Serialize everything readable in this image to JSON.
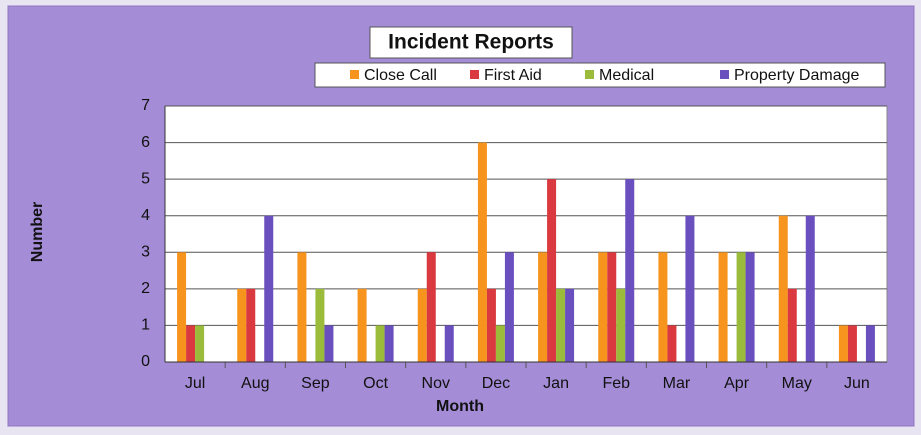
{
  "chart_data": {
    "type": "bar",
    "title": "Incident Reports",
    "x_label": "Month",
    "y_label": "Number",
    "categories": [
      "Jul",
      "Aug",
      "Sep",
      "Oct",
      "Nov",
      "Dec",
      "Jan",
      "Feb",
      "Mar",
      "Apr",
      "May",
      "Jun"
    ],
    "series": [
      {
        "name": "Close Call",
        "color": "#f7941d",
        "values": [
          3,
          2,
          3,
          2,
          2,
          6,
          3,
          3,
          3,
          3,
          4,
          1
        ]
      },
      {
        "name": "First Aid",
        "color": "#d9393f",
        "values": [
          1,
          2,
          0,
          0,
          3,
          2,
          5,
          3,
          1,
          0,
          2,
          1
        ]
      },
      {
        "name": "Medical",
        "color": "#9bbb3b",
        "values": [
          1,
          0,
          2,
          1,
          0,
          1,
          2,
          2,
          0,
          3,
          0,
          0
        ]
      },
      {
        "name": "Property Damage",
        "color": "#6a4fbf",
        "values": [
          0,
          4,
          1,
          1,
          1,
          3,
          2,
          5,
          4,
          3,
          4,
          1
        ]
      }
    ],
    "ylim": [
      0,
      7
    ],
    "yticks": [
      0,
      1,
      2,
      3,
      4,
      5,
      6,
      7
    ],
    "grid": true,
    "legend": "top"
  }
}
